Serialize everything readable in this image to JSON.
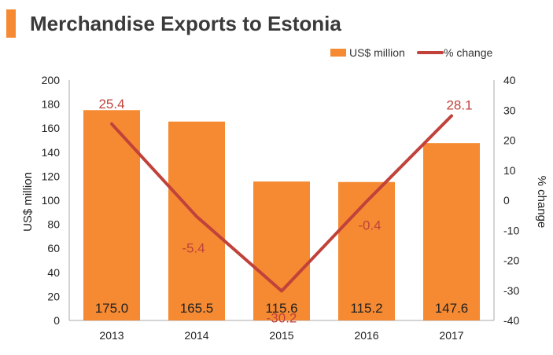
{
  "title": "Merchandise Exports to Estonia",
  "colors": {
    "bar": "#f58a32",
    "line": "#c0423b",
    "accent": "#f58a32",
    "title": "#3a3a3a",
    "axis": "#aaaaaa",
    "text": "#222222"
  },
  "legend": {
    "bar_label": "US$ million",
    "line_label": "% change"
  },
  "chart_data": {
    "type": "bar",
    "categories": [
      "2013",
      "2014",
      "2015",
      "2016",
      "2017"
    ],
    "series": [
      {
        "name": "US$ million",
        "type": "bar",
        "axis": "left",
        "values": [
          175.0,
          165.5,
          115.6,
          115.2,
          147.6
        ],
        "labels": [
          "175.0",
          "165.5",
          "115.6",
          "115.2",
          "147.6"
        ]
      },
      {
        "name": "% change",
        "type": "line",
        "axis": "right",
        "values": [
          25.4,
          -5.4,
          -30.2,
          -0.4,
          28.1
        ],
        "labels": [
          "25.4",
          "-5.4",
          "-30.2",
          "-0.4",
          "28.1"
        ]
      }
    ],
    "ylabel": "US$ million",
    "y2label": "% change",
    "ylim": [
      0,
      200
    ],
    "y2lim": [
      -40,
      40
    ],
    "yticks": [
      "0",
      "20",
      "40",
      "60",
      "80",
      "100",
      "120",
      "140",
      "160",
      "180",
      "200"
    ],
    "y2ticks": [
      "-40",
      "-30",
      "-20",
      "-10",
      "0",
      "10",
      "20",
      "30",
      "40"
    ],
    "legend_position": "top-right",
    "grid": false
  }
}
